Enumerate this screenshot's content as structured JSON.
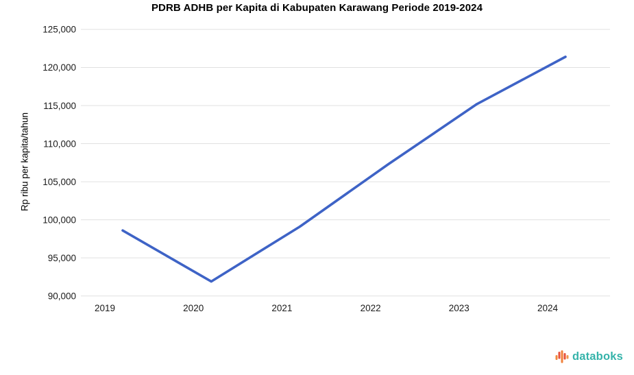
{
  "title": "PDRB ADHB per Kapita di Kabupaten Karawang Periode 2019-2024",
  "chart_data": {
    "type": "line",
    "categories": [
      "2019",
      "2020",
      "2021",
      "2022",
      "2023",
      "2024"
    ],
    "values": [
      98600,
      91900,
      99100,
      107300,
      115200,
      121400
    ],
    "title": "PDRB ADHB per Kapita di Kabupaten Karawang Periode 2019-2024",
    "xlabel": "",
    "ylabel": "Rp ribu per kapita/tahun",
    "ylim": [
      90000,
      125000
    ],
    "ytick_step": 5000,
    "ytick_labels": [
      "90,000",
      "95,000",
      "100,000",
      "105,000",
      "110,000",
      "115,000",
      "120,000",
      "125,000"
    ],
    "grid": true,
    "legend": "none",
    "line_color": "#3e63c6",
    "gridline_color": "#e0e0e0",
    "tick_label_color": "#1a1a1a"
  },
  "branding": {
    "logo_text": "databoks",
    "logo_text_color": "#35b3aa",
    "logo_bar_colors": [
      "#f08a3c",
      "#e8503a",
      "#f0823c",
      "#e8503a",
      "#f0984c"
    ]
  }
}
